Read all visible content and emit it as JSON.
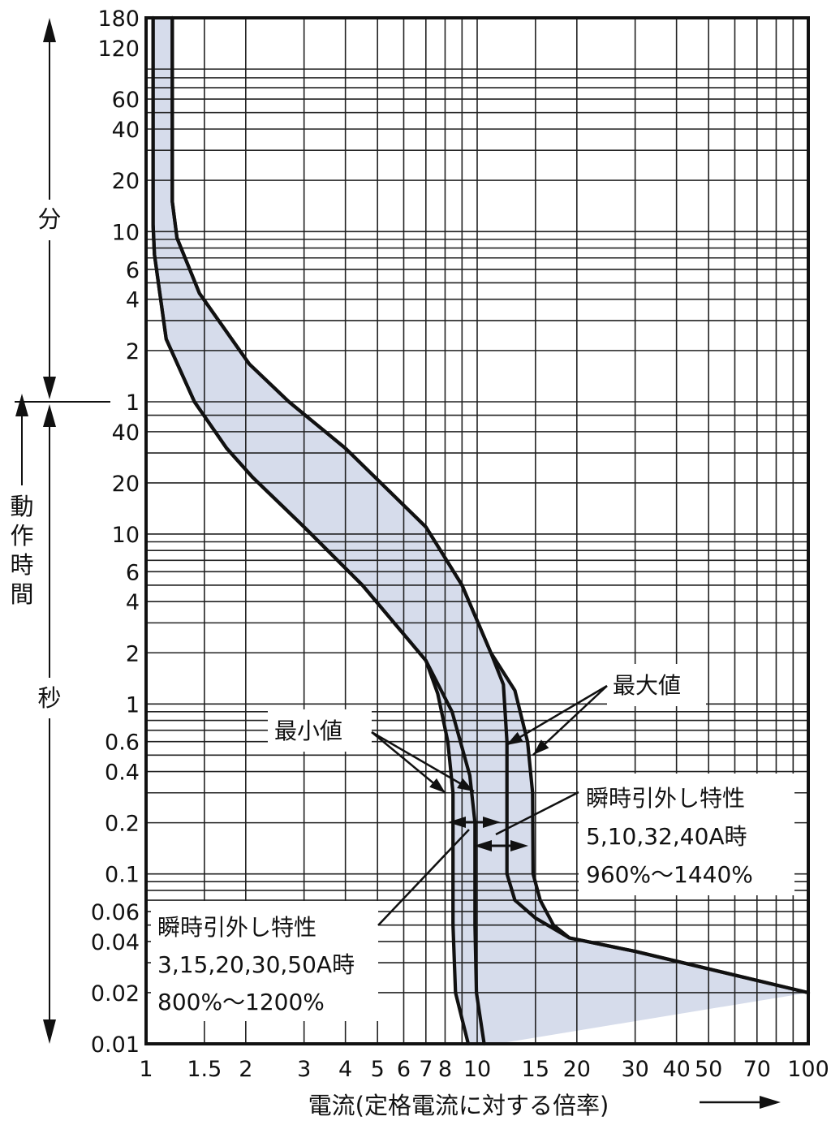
{
  "chart_data": {
    "type": "line",
    "title": "",
    "xlabel": "電流(定格電流に対する倍率)",
    "x_scale": "log",
    "y_scale": "log",
    "xlim": [
      1,
      100
    ],
    "x_ticks": [
      {
        "value": 1,
        "label": "1"
      },
      {
        "value": 1.5,
        "label": "1.5"
      },
      {
        "value": 2,
        "label": "2"
      },
      {
        "value": 3,
        "label": "3"
      },
      {
        "value": 4,
        "label": "4"
      },
      {
        "value": 5,
        "label": "5"
      },
      {
        "value": 6,
        "label": "6"
      },
      {
        "value": 7,
        "label": "7"
      },
      {
        "value": 8,
        "label": "8"
      },
      {
        "value": 10,
        "label": "10"
      },
      {
        "value": 15,
        "label": "15"
      },
      {
        "value": 20,
        "label": "20"
      },
      {
        "value": 30,
        "label": "30"
      },
      {
        "value": 40,
        "label": "40"
      },
      {
        "value": 50,
        "label": "50"
      },
      {
        "value": 70,
        "label": "70"
      },
      {
        "value": 100,
        "label": "100"
      }
    ],
    "y_unit_sections": [
      {
        "label": "分",
        "range_seconds": [
          60,
          10800
        ]
      },
      {
        "label": "秒",
        "range_seconds": [
          0.01,
          60
        ]
      }
    ],
    "y_axis_title": "動作時間",
    "ylim_seconds": [
      0.01,
      10800
    ],
    "y_ticks": [
      {
        "seconds": 10800,
        "label": "180"
      },
      {
        "seconds": 7200,
        "label": "120"
      },
      {
        "seconds": 3600,
        "label": "60"
      },
      {
        "seconds": 2400,
        "label": "40"
      },
      {
        "seconds": 1200,
        "label": "20"
      },
      {
        "seconds": 600,
        "label": "10"
      },
      {
        "seconds": 360,
        "label": "6"
      },
      {
        "seconds": 240,
        "label": "4"
      },
      {
        "seconds": 120,
        "label": "2"
      },
      {
        "seconds": 60,
        "label": "1"
      },
      {
        "seconds": 40,
        "label": "40"
      },
      {
        "seconds": 20,
        "label": "20"
      },
      {
        "seconds": 10,
        "label": "10"
      },
      {
        "seconds": 6,
        "label": "6"
      },
      {
        "seconds": 4,
        "label": "4"
      },
      {
        "seconds": 2,
        "label": "2"
      },
      {
        "seconds": 1,
        "label": "1"
      },
      {
        "seconds": 0.6,
        "label": "0.6"
      },
      {
        "seconds": 0.4,
        "label": "0.4"
      },
      {
        "seconds": 0.2,
        "label": "0.2"
      },
      {
        "seconds": 0.1,
        "label": "0.1"
      },
      {
        "seconds": 0.06,
        "label": "0.06"
      },
      {
        "seconds": 0.04,
        "label": "0.04"
      },
      {
        "seconds": 0.02,
        "label": "0.02"
      },
      {
        "seconds": 0.01,
        "label": "0.01"
      }
    ],
    "grid": true,
    "series": [
      {
        "name": "最小値",
        "points": [
          [
            1.05,
            10800
          ],
          [
            1.05,
            660
          ],
          [
            1.06,
            440
          ],
          [
            1.15,
            140
          ],
          [
            1.4,
            60
          ],
          [
            1.75,
            32
          ],
          [
            2.1,
            21.5
          ],
          [
            3,
            11
          ],
          [
            4.5,
            5
          ],
          [
            7,
            1.8
          ],
          [
            7.6,
            1.15
          ],
          [
            8.15,
            0.6
          ],
          [
            8.45,
            0.3
          ],
          [
            8.45,
            0.05
          ],
          [
            8.6,
            0.02
          ],
          [
            9.4,
            0.01
          ]
        ]
      },
      {
        "name": "最小値",
        "points": [
          [
            1.05,
            10800
          ],
          [
            1.05,
            660
          ],
          [
            1.06,
            440
          ],
          [
            1.15,
            140
          ],
          [
            1.4,
            60
          ],
          [
            1.75,
            32
          ],
          [
            2.1,
            21.5
          ],
          [
            3,
            11
          ],
          [
            4.5,
            5
          ],
          [
            7,
            1.8
          ],
          [
            8.4,
            0.9
          ],
          [
            9.5,
            0.38
          ],
          [
            9.85,
            0.2
          ],
          [
            9.85,
            0.05
          ],
          [
            9.95,
            0.02
          ],
          [
            10.5,
            0.01
          ]
        ]
      },
      {
        "name": "最大値",
        "points": [
          [
            1.2,
            10800
          ],
          [
            1.2,
            900
          ],
          [
            1.24,
            550
          ],
          [
            1.45,
            260
          ],
          [
            2.05,
            100
          ],
          [
            2.7,
            60
          ],
          [
            4,
            32
          ],
          [
            7,
            11
          ],
          [
            9,
            5
          ],
          [
            11,
            2
          ],
          [
            12,
            1.3
          ],
          [
            12.3,
            0.6
          ],
          [
            12.3,
            0.1
          ],
          [
            13,
            0.07
          ],
          [
            15,
            0.055
          ],
          [
            19,
            0.042
          ],
          [
            30,
            0.035
          ],
          [
            100,
            0.02
          ]
        ]
      },
      {
        "name": "最大値",
        "points": [
          [
            1.2,
            10800
          ],
          [
            1.2,
            900
          ],
          [
            1.24,
            550
          ],
          [
            1.45,
            260
          ],
          [
            2.05,
            100
          ],
          [
            2.7,
            60
          ],
          [
            4,
            32
          ],
          [
            7,
            11
          ],
          [
            9,
            5
          ],
          [
            11,
            2
          ],
          [
            13,
            1.2
          ],
          [
            14.2,
            0.6
          ],
          [
            14.7,
            0.3
          ],
          [
            14.75,
            0.1
          ],
          [
            15.5,
            0.07
          ],
          [
            17,
            0.05
          ],
          [
            19,
            0.042
          ],
          [
            30,
            0.035
          ],
          [
            100,
            0.02
          ]
        ]
      }
    ],
    "band_fill": "#d6dceb",
    "line_color": "#111111",
    "annotations": [
      {
        "text": "最大値"
      },
      {
        "text": "最小値"
      },
      {
        "text": [
          "瞬時引外し特性",
          "5,10,32,40A時",
          "960%〜1440%"
        ]
      },
      {
        "text": [
          "瞬時引外し特性",
          "3,15,20,30,50A時",
          "800%〜1200%"
        ]
      }
    ]
  }
}
